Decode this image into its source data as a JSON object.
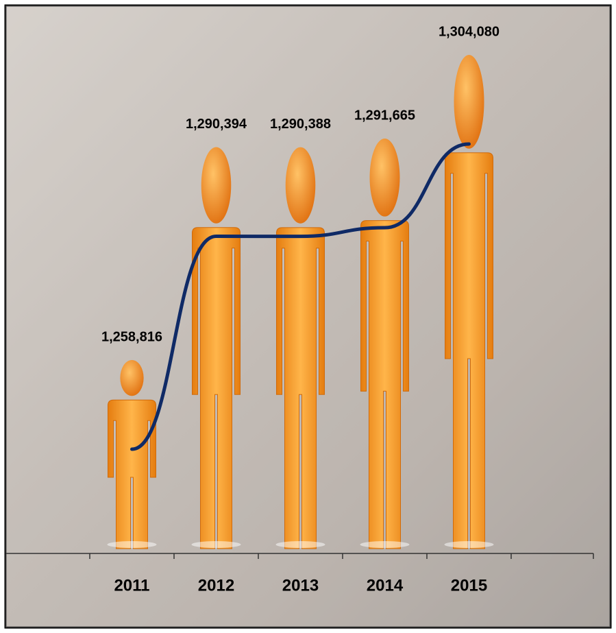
{
  "chart_data": {
    "type": "bar",
    "categories": [
      "2011",
      "2012",
      "2013",
      "2014",
      "2015"
    ],
    "values": [
      1258816,
      1290394,
      1290388,
      1291665,
      1304080
    ],
    "value_labels": [
      "1,258,816",
      "1,290,394",
      "1,290,388",
      "1,291,665",
      "1,304,080"
    ],
    "color": "#f39a1c",
    "trend_color": "#0f2a66"
  }
}
